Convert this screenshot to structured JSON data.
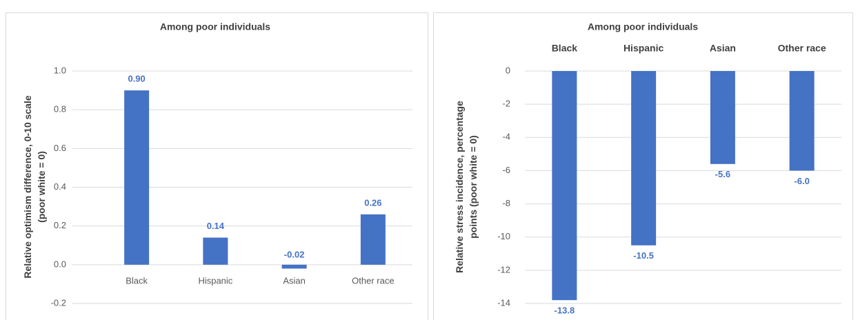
{
  "chart_data": [
    {
      "type": "bar",
      "title": "Among poor individuals",
      "ylabel": [
        "Relative optimism difference, 0-10 scale",
        "(poor white = 0)"
      ],
      "categories": [
        "Black",
        "Hispanic",
        "Asian",
        "Other race"
      ],
      "values": [
        0.9,
        0.14,
        -0.02,
        0.26
      ],
      "value_labels": [
        "0.90",
        "0.14",
        "-0.02",
        "0.26"
      ],
      "color": "#4472c4",
      "ylim": [
        -0.2,
        1.0
      ],
      "yticks": [
        {
          "value": -0.2,
          "label": "-0.2"
        },
        {
          "value": 0,
          "label": "0.0"
        },
        0.2,
        0.4,
        0.6,
        0.8,
        {
          "value": 1,
          "label": "1.0"
        }
      ],
      "grid": true
    },
    {
      "type": "bar",
      "title": "Among poor individuals",
      "ylabel": [
        "Relative stress incidence, percentage",
        "points (poor white  = 0)"
      ],
      "categories": [
        "Black",
        "Hispanic",
        "Asian",
        "Other race"
      ],
      "values": [
        -13.8,
        -10.5,
        -5.6,
        -6.0
      ],
      "value_labels": [
        "-13.8",
        "-10.5",
        "-5.6",
        "-6.0"
      ],
      "color": "#4472c4",
      "ylim": [
        -14,
        0
      ],
      "yticks": [
        -14,
        -12,
        -10,
        -8,
        -6,
        -4,
        -2,
        0
      ],
      "grid": true
    }
  ]
}
